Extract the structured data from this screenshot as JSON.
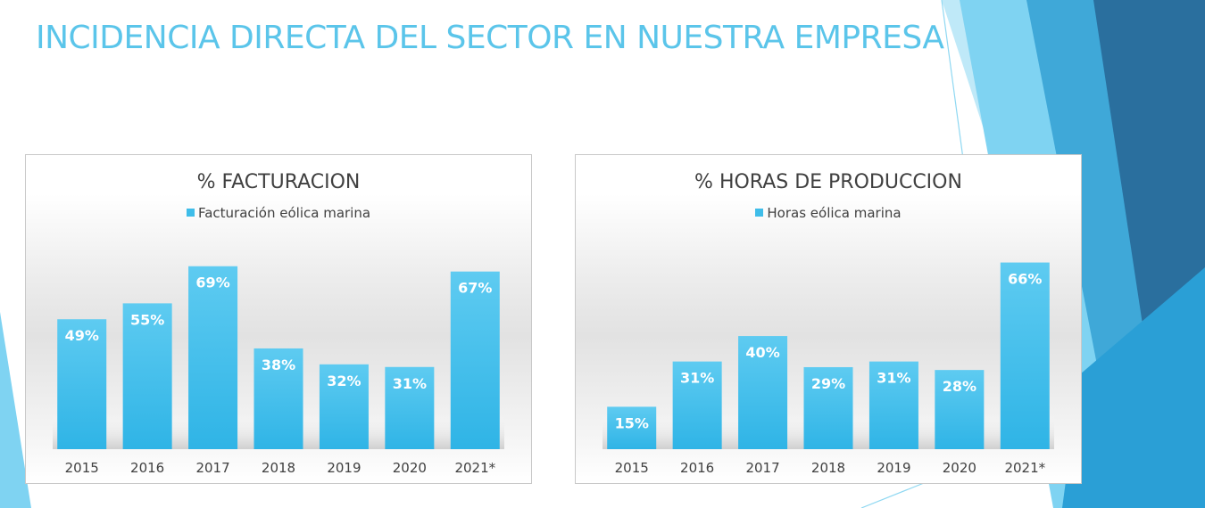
{
  "title": "INCIDENCIA DIRECTA DEL SECTOR EN NUESTRA EMPRESA",
  "colors": {
    "title": "#5bc5ea",
    "bar_top": "#5ecbf1",
    "bar_bottom": "#2fb4e6",
    "label": "#ffffff",
    "axis_text": "#404040",
    "decor_dark": "#2a6f9e",
    "decor_mid": "#3fa8d8",
    "decor_light": "#7fd3f2"
  },
  "chart_data": [
    {
      "type": "bar",
      "title": "% FACTURACION",
      "categories": [
        "2015",
        "2016",
        "2017",
        "2018",
        "2019",
        "2020",
        "2021*"
      ],
      "series": [
        {
          "name": "Facturación eólica marina",
          "values": [
            49,
            55,
            69,
            38,
            32,
            31,
            67
          ]
        }
      ],
      "data_labels": [
        "49%",
        "55%",
        "69%",
        "38%",
        "32%",
        "31%",
        "67%"
      ],
      "ylim": [
        0,
        80
      ],
      "grid": false,
      "legend_position": "top"
    },
    {
      "type": "bar",
      "title": "% HORAS DE PRODUCCION",
      "categories": [
        "2015",
        "2016",
        "2017",
        "2018",
        "2019",
        "2020",
        "2021*"
      ],
      "series": [
        {
          "name": "Horas eólica marina",
          "values": [
            15,
            31,
            40,
            29,
            31,
            28,
            66
          ]
        }
      ],
      "data_labels": [
        "15%",
        "31%",
        "40%",
        "29%",
        "31%",
        "28%",
        "66%"
      ],
      "ylim": [
        0,
        75
      ],
      "grid": false,
      "legend_position": "top"
    }
  ]
}
